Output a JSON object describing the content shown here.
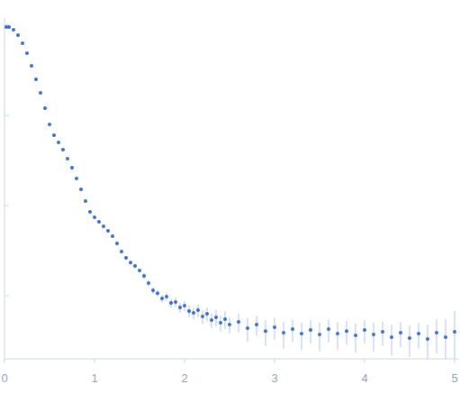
{
  "chart_data": {
    "type": "scatter",
    "log": "y",
    "grid": false,
    "tick_labels": "x",
    "xlim": [
      0,
      5.05
    ],
    "ylim": [
      0.0002,
      1.2
    ],
    "xticks": [
      0,
      1,
      2,
      3,
      4,
      5
    ],
    "yticks": [
      0.001,
      0.01,
      0.1,
      1
    ],
    "x": [
      0.02,
      0.05,
      0.1,
      0.15,
      0.2,
      0.25,
      0.3,
      0.35,
      0.4,
      0.45,
      0.5,
      0.55,
      0.6,
      0.65,
      0.7,
      0.75,
      0.8,
      0.85,
      0.9,
      0.95,
      1.0,
      1.05,
      1.1,
      1.15,
      1.2,
      1.25,
      1.3,
      1.35,
      1.4,
      1.45,
      1.5,
      1.55,
      1.6,
      1.65,
      1.7,
      1.75,
      1.8,
      1.85,
      1.9,
      1.95,
      2.0,
      2.05,
      2.1,
      2.15,
      2.2,
      2.25,
      2.3,
      2.35,
      2.4,
      2.45,
      2.5,
      2.6,
      2.7,
      2.8,
      2.9,
      3.0,
      3.1,
      3.2,
      3.3,
      3.4,
      3.5,
      3.6,
      3.7,
      3.8,
      3.9,
      4.0,
      4.1,
      4.2,
      4.3,
      4.4,
      4.5,
      4.6,
      4.7,
      4.8,
      4.9,
      5.0
    ],
    "series": [
      {
        "color": "#3b6cc2",
        "marker": "circle",
        "values": [
          0.955,
          0.955,
          0.891,
          0.776,
          0.631,
          0.49,
          0.355,
          0.251,
          0.178,
          0.12,
          0.0794,
          0.0603,
          0.0501,
          0.0417,
          0.0331,
          0.0263,
          0.02,
          0.0151,
          0.0112,
          0.00851,
          0.00741,
          0.00661,
          0.00589,
          0.00525,
          0.00457,
          0.0038,
          0.00309,
          0.00263,
          0.00234,
          0.00214,
          0.00191,
          0.00166,
          0.00138,
          0.00115,
          0.00107,
          0.000933,
          0.000977,
          0.000832,
          0.000851,
          0.000741,
          0.000776,
          0.000676,
          0.000646,
          0.000692,
          0.000589,
          0.000631,
          0.000537,
          0.000575,
          0.000501,
          0.00055,
          0.000479,
          0.000513,
          0.000437,
          0.000479,
          0.000407,
          0.000447,
          0.000389,
          0.000427,
          0.00038,
          0.000417,
          0.000372,
          0.000427,
          0.00038,
          0.000407,
          0.000363,
          0.000417,
          0.000372,
          0.000398,
          0.000347,
          0.000389,
          0.000339,
          0.00038,
          0.000331,
          0.000389,
          0.000347,
          0.000398
        ],
        "errors": [
          0.01,
          0.01,
          0.009,
          0.008,
          0.006,
          0.005,
          0.004,
          0.003,
          0.002,
          0.0015,
          0.001,
          0.0008,
          0.0006,
          0.0005,
          0.0004,
          0.0003,
          0.0003,
          0.0002,
          0.0002,
          0.00015,
          0.0003,
          0.0003,
          0.0003,
          0.00026,
          0.00023,
          0.0002,
          0.00016,
          0.00014,
          0.00012,
          0.00011,
          0.0001,
          0.00012,
          0.0001,
          9e-05,
          9e-05,
          9e-05,
          0.0001,
          9e-05,
          0.0001,
          9e-05,
          0.0001,
          0.0001,
          0.0001,
          0.00011,
          0.0001,
          0.00011,
          0.0001,
          0.00012,
          0.0001,
          0.00012,
          0.0001,
          0.00012,
          0.00013,
          0.00012,
          0.00013,
          0.00012,
          0.00013,
          0.00012,
          0.00013,
          0.00012,
          0.00013,
          0.00012,
          0.00013,
          0.00012,
          0.00013,
          0.00012,
          0.00013,
          0.00012,
          0.00013,
          0.00012,
          0.00013,
          0.00012,
          0.00015,
          0.00016,
          0.0002,
          0.00028
        ]
      }
    ]
  }
}
